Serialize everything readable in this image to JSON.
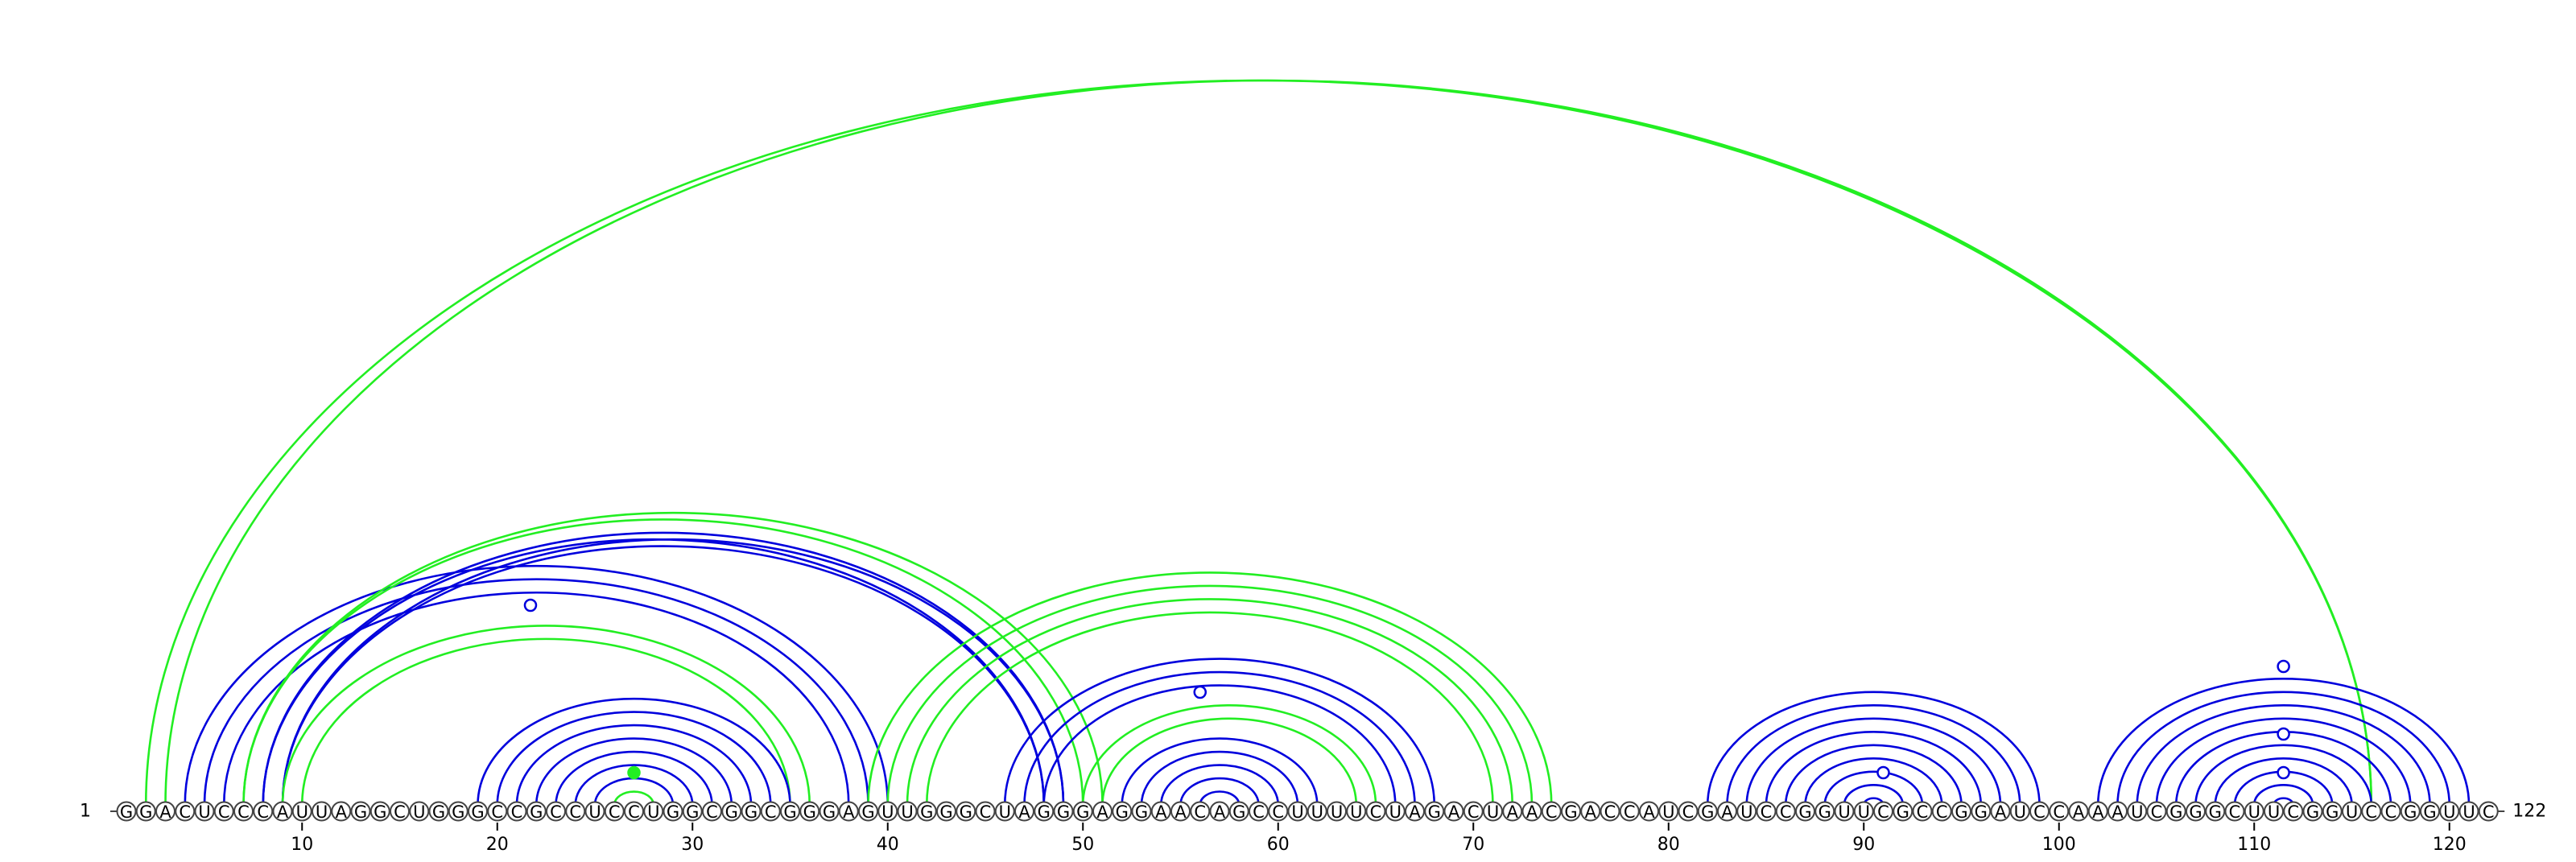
{
  "diagram": {
    "sequence": "GGACUCCCAUUAGGCUGGGCCGCCUCCUGGCGGCGGGAGUUGGGCUAGGGAGGAACAGCCUUUUCUAGACUAACGACCAUCGAUCCGGUUCGCCGGAUCCAAAUCGGGCUUCGGUCCGGUUC",
    "start_label": "1",
    "end_label": "122",
    "ticks": [
      10,
      20,
      30,
      40,
      50,
      60,
      70,
      80,
      90,
      100,
      110,
      120
    ],
    "colors": {
      "blue": "#0000dd",
      "green": "#22ee22"
    },
    "arcs": [
      {
        "i": 2,
        "j": 116,
        "color": "green"
      },
      {
        "i": 3,
        "j": 116,
        "color": "green"
      },
      {
        "i": 4,
        "j": 40,
        "color": "blue"
      },
      {
        "i": 5,
        "j": 39,
        "color": "blue"
      },
      {
        "i": 6,
        "j": 38,
        "color": "blue"
      },
      {
        "i": 7,
        "j": 51,
        "color": "green"
      },
      {
        "i": 7,
        "j": 50,
        "color": "green"
      },
      {
        "i": 8,
        "j": 49,
        "color": "blue"
      },
      {
        "i": 8,
        "j": 48,
        "color": "blue"
      },
      {
        "i": 9,
        "j": 49,
        "color": "blue"
      },
      {
        "i": 9,
        "j": 48,
        "color": "blue"
      },
      {
        "i": 9,
        "j": 36,
        "color": "green"
      },
      {
        "i": 10,
        "j": 35,
        "color": "green"
      },
      {
        "i": 19,
        "j": 35,
        "color": "blue"
      },
      {
        "i": 20,
        "j": 34,
        "color": "blue"
      },
      {
        "i": 21,
        "j": 33,
        "color": "blue"
      },
      {
        "i": 22,
        "j": 32,
        "color": "blue"
      },
      {
        "i": 23,
        "j": 31,
        "color": "blue"
      },
      {
        "i": 24,
        "j": 30,
        "color": "blue"
      },
      {
        "i": 25,
        "j": 29,
        "color": "blue"
      },
      {
        "i": 26,
        "j": 28,
        "color": "green"
      },
      {
        "i": 39,
        "j": 74,
        "color": "green"
      },
      {
        "i": 40,
        "j": 73,
        "color": "green"
      },
      {
        "i": 41,
        "j": 72,
        "color": "green"
      },
      {
        "i": 42,
        "j": 71,
        "color": "green"
      },
      {
        "i": 46,
        "j": 68,
        "color": "blue"
      },
      {
        "i": 47,
        "j": 67,
        "color": "blue"
      },
      {
        "i": 48,
        "j": 66,
        "color": "blue"
      },
      {
        "i": 50,
        "j": 65,
        "color": "green"
      },
      {
        "i": 51,
        "j": 64,
        "color": "green"
      },
      {
        "i": 52,
        "j": 62,
        "color": "blue"
      },
      {
        "i": 53,
        "j": 61,
        "color": "blue"
      },
      {
        "i": 54,
        "j": 60,
        "color": "blue"
      },
      {
        "i": 55,
        "j": 59,
        "color": "blue"
      },
      {
        "i": 56,
        "j": 58,
        "color": "blue"
      },
      {
        "i": 82,
        "j": 99,
        "color": "blue"
      },
      {
        "i": 83,
        "j": 98,
        "color": "blue"
      },
      {
        "i": 84,
        "j": 97,
        "color": "blue"
      },
      {
        "i": 85,
        "j": 96,
        "color": "blue"
      },
      {
        "i": 86,
        "j": 95,
        "color": "blue"
      },
      {
        "i": 87,
        "j": 94,
        "color": "blue"
      },
      {
        "i": 88,
        "j": 93,
        "color": "blue"
      },
      {
        "i": 89,
        "j": 92,
        "color": "blue"
      },
      {
        "i": 90,
        "j": 91,
        "color": "blue"
      },
      {
        "i": 102,
        "j": 121,
        "color": "blue"
      },
      {
        "i": 103,
        "j": 120,
        "color": "blue"
      },
      {
        "i": 104,
        "j": 119,
        "color": "blue"
      },
      {
        "i": 105,
        "j": 118,
        "color": "blue"
      },
      {
        "i": 106,
        "j": 117,
        "color": "blue"
      },
      {
        "i": 107,
        "j": 116,
        "color": "blue"
      },
      {
        "i": 108,
        "j": 115,
        "color": "blue"
      },
      {
        "i": 109,
        "j": 114,
        "color": "blue"
      },
      {
        "i": 110,
        "j": 113,
        "color": "blue"
      },
      {
        "i": 111,
        "j": 112,
        "color": "blue"
      }
    ],
    "markers": [
      {
        "x": 21.7,
        "height": 0.62,
        "fill": "white",
        "color": "blue"
      },
      {
        "x": 56.0,
        "height": 0.35,
        "fill": "white",
        "color": "blue"
      },
      {
        "x": 91.0,
        "height": 0.1,
        "fill": "white",
        "color": "blue"
      },
      {
        "x": 111.5,
        "height": 0.43,
        "fill": "white",
        "color": "blue"
      },
      {
        "x": 111.5,
        "height": 0.22,
        "fill": "white",
        "color": "blue"
      },
      {
        "x": 111.5,
        "height": 0.1,
        "fill": "white",
        "color": "blue"
      },
      {
        "x": 27.0,
        "height": 0.1,
        "fill": "green",
        "color": "green"
      }
    ]
  }
}
